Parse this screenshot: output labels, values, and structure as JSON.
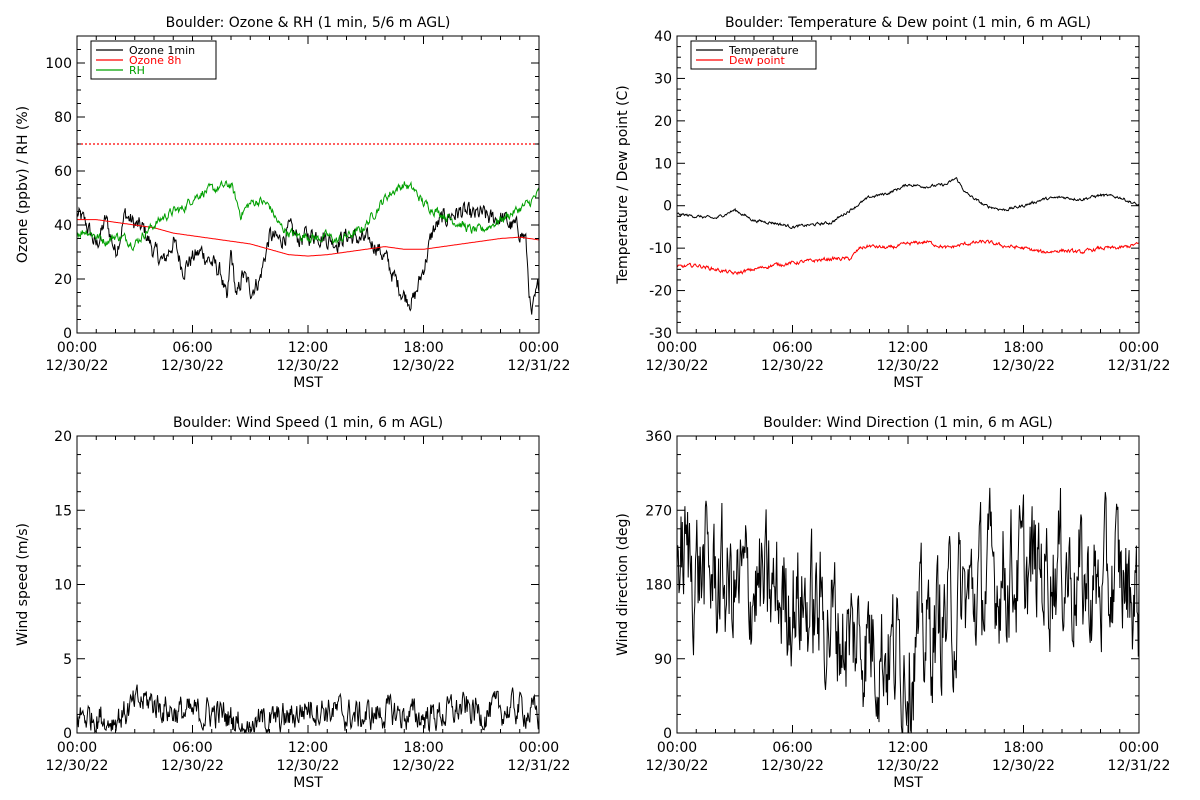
{
  "chart_data": [
    {
      "type": "line",
      "title": "Boulder: Ozone & RH (1 min, 5/6 m AGL)",
      "xlabel": "MST",
      "ylabel": "Ozone (ppbv) / RH (%)",
      "xlim": [
        0,
        24
      ],
      "ylim": [
        0,
        110
      ],
      "yticks": [
        0,
        20,
        40,
        60,
        80,
        100
      ],
      "xtick_labels": [
        {
          "time": "00:00",
          "date": "12/30/22"
        },
        {
          "time": "06:00",
          "date": "12/30/22"
        },
        {
          "time": "12:00",
          "date": "12/30/22"
        },
        {
          "time": "18:00",
          "date": "12/30/22"
        },
        {
          "time": "00:00",
          "date": "12/31/22"
        }
      ],
      "reference_line": {
        "y": 70,
        "color": "#ff0000",
        "style": "dotted"
      },
      "legend": {
        "placement": "top-left",
        "entries": [
          {
            "label": "Ozone 1min",
            "color": "#000000"
          },
          {
            "label": "Ozone 8h",
            "color": "#ff0000"
          },
          {
            "label": "RH",
            "color": "#00a000"
          }
        ]
      },
      "series": [
        {
          "name": "Ozone 1min",
          "color": "#000000",
          "x": [
            0,
            0.5,
            1,
            1.5,
            2,
            2.5,
            3,
            3.5,
            4,
            4.5,
            5,
            5.5,
            6,
            6.5,
            7,
            7.5,
            7.8,
            8,
            8.3,
            8.6,
            9,
            9.5,
            10,
            10.5,
            11,
            11.5,
            12,
            12.5,
            13,
            13.5,
            14,
            14.5,
            15,
            15.5,
            16,
            16.5,
            17,
            17.5,
            18,
            18.5,
            19,
            19.5,
            20,
            20.5,
            21,
            21.5,
            22,
            22.5,
            23,
            23.3,
            23.6,
            24
          ],
          "y": [
            44,
            40,
            32,
            42,
            30,
            44,
            40,
            38,
            30,
            26,
            34,
            24,
            28,
            30,
            26,
            22,
            10,
            30,
            12,
            22,
            16,
            20,
            36,
            34,
            38,
            35,
            36,
            37,
            35,
            34,
            36,
            35,
            34,
            33,
            28,
            20,
            14,
            12,
            24,
            38,
            42,
            44,
            45,
            43,
            44,
            42,
            43,
            40,
            38,
            35,
            5,
            18
          ],
          "noise": 4
        },
        {
          "name": "Ozone 8h",
          "color": "#ff0000",
          "x": [
            0,
            1,
            2,
            3,
            4,
            5,
            6,
            7,
            8,
            9,
            10,
            11,
            12,
            13,
            14,
            15,
            16,
            17,
            18,
            19,
            20,
            21,
            22,
            23,
            24
          ],
          "y": [
            42,
            42,
            41,
            40,
            39,
            37,
            36,
            35,
            34,
            33,
            31,
            29,
            28.5,
            29,
            30,
            31,
            32,
            31,
            31,
            32,
            33,
            34,
            35,
            35.5,
            34.5
          ],
          "noise": 0
        },
        {
          "name": "RH",
          "color": "#00a000",
          "x": [
            0,
            0.5,
            1,
            1.5,
            2,
            2.5,
            3,
            3.5,
            4,
            4.5,
            5,
            5.5,
            6,
            6.5,
            7,
            7.5,
            8,
            8.5,
            9,
            9.5,
            10,
            10.5,
            11,
            11.5,
            12,
            12.5,
            13,
            13.5,
            14,
            14.5,
            15,
            15.5,
            16,
            16.5,
            17,
            17.5,
            18,
            18.5,
            19,
            19.5,
            20,
            20.5,
            21,
            21.5,
            22,
            22.5,
            23,
            23.5,
            24
          ],
          "y": [
            37,
            38,
            36,
            34,
            36,
            35,
            33,
            37,
            40,
            43,
            45,
            46,
            50,
            52,
            53,
            54,
            55,
            44,
            48,
            49,
            47,
            40,
            37,
            36,
            36,
            35,
            36,
            34,
            36,
            37,
            40,
            45,
            50,
            53,
            55,
            53,
            48,
            46,
            44,
            42,
            40,
            38,
            38,
            40,
            42,
            44,
            46,
            48,
            52
          ],
          "noise": 2
        }
      ]
    },
    {
      "type": "line",
      "title": "Boulder: Temperature & Dew point (1 min, 6 m AGL)",
      "xlabel": "MST",
      "ylabel": "Temperature / Dew point (C)",
      "xlim": [
        0,
        24
      ],
      "ylim": [
        -30,
        40
      ],
      "yticks": [
        -30,
        -20,
        -10,
        0,
        10,
        20,
        30,
        40
      ],
      "xtick_labels": [
        {
          "time": "00:00",
          "date": "12/30/22"
        },
        {
          "time": "06:00",
          "date": "12/30/22"
        },
        {
          "time": "12:00",
          "date": "12/30/22"
        },
        {
          "time": "18:00",
          "date": "12/30/22"
        },
        {
          "time": "00:00",
          "date": "12/31/22"
        }
      ],
      "legend": {
        "placement": "top-left",
        "entries": [
          {
            "label": "Temperature",
            "color": "#000000"
          },
          {
            "label": "Dew point",
            "color": "#ff0000"
          }
        ]
      },
      "series": [
        {
          "name": "Temperature",
          "color": "#000000",
          "x": [
            0,
            1,
            2,
            3,
            4,
            5,
            6,
            7,
            8,
            9,
            10,
            11,
            12,
            13,
            14,
            14.5,
            15,
            16,
            17,
            18,
            19,
            20,
            21,
            22,
            23,
            24
          ],
          "y": [
            -2,
            -2.5,
            -3,
            -1,
            -3.5,
            -4,
            -5,
            -4.5,
            -4,
            -1,
            2,
            3,
            5,
            4.5,
            5,
            6.5,
            3,
            0,
            -1,
            0,
            1.5,
            2,
            1.5,
            2.5,
            2,
            0
          ],
          "noise": 0.4
        },
        {
          "name": "Dew point",
          "color": "#ff0000",
          "x": [
            0,
            1,
            2,
            3,
            4,
            5,
            6,
            7,
            8,
            9,
            9.5,
            10,
            11,
            12,
            13,
            14,
            15,
            16,
            17,
            18,
            19,
            20,
            21,
            22,
            23,
            24
          ],
          "y": [
            -14.5,
            -14,
            -15,
            -16,
            -15,
            -14,
            -13.5,
            -13,
            -12.5,
            -12.5,
            -10,
            -9.5,
            -10,
            -9,
            -8.5,
            -10,
            -9,
            -8.5,
            -9.5,
            -10,
            -11,
            -10.5,
            -11,
            -10,
            -10,
            -9
          ],
          "noise": 0.5
        }
      ]
    },
    {
      "type": "line",
      "title": "Boulder: Wind Speed (1 min, 6 m AGL)",
      "xlabel": "MST",
      "ylabel": "Wind speed (m/s)",
      "xlim": [
        0,
        24
      ],
      "ylim": [
        0,
        20
      ],
      "yticks": [
        0,
        5,
        10,
        15,
        20
      ],
      "xtick_labels": [
        {
          "time": "00:00",
          "date": "12/30/22"
        },
        {
          "time": "06:00",
          "date": "12/30/22"
        },
        {
          "time": "12:00",
          "date": "12/30/22"
        },
        {
          "time": "18:00",
          "date": "12/30/22"
        },
        {
          "time": "00:00",
          "date": "12/31/22"
        }
      ],
      "series": [
        {
          "color": "#000000",
          "x": [
            0,
            2,
            3,
            3.5,
            4,
            5,
            6,
            7,
            8,
            9,
            10,
            11,
            12,
            13,
            14,
            15,
            16,
            17,
            18,
            19,
            20,
            21,
            22,
            23,
            24
          ],
          "y": [
            1.2,
            1,
            1.8,
            2.2,
            2,
            1.5,
            1.2,
            1.4,
            1,
            0.8,
            0.7,
            1,
            1.8,
            1.6,
            1.2,
            1.1,
            1.4,
            1.2,
            1.1,
            1.3,
            1.6,
            1.4,
            1.5,
            1.7,
            1.2
          ],
          "noise": 1.2,
          "min": 0
        }
      ]
    },
    {
      "type": "line",
      "title": "Boulder: Wind Direction (1 min, 6 m AGL)",
      "xlabel": "MST",
      "ylabel": "Wind direction (deg)",
      "xlim": [
        0,
        24
      ],
      "ylim": [
        0,
        360
      ],
      "yticks": [
        0,
        90,
        180,
        270,
        360
      ],
      "xtick_labels": [
        {
          "time": "00:00",
          "date": "12/30/22"
        },
        {
          "time": "06:00",
          "date": "12/30/22"
        },
        {
          "time": "12:00",
          "date": "12/30/22"
        },
        {
          "time": "18:00",
          "date": "12/30/22"
        },
        {
          "time": "00:00",
          "date": "12/31/22"
        }
      ],
      "series": [
        {
          "color": "#000000",
          "x": [
            0,
            1,
            2,
            3,
            4,
            5,
            6,
            7,
            8,
            9,
            10,
            11,
            12,
            13,
            14,
            15,
            16,
            17,
            18,
            19,
            20,
            21,
            22,
            23,
            24
          ],
          "y": [
            220,
            200,
            190,
            170,
            180,
            160,
            170,
            150,
            140,
            110,
            120,
            100,
            90,
            120,
            140,
            160,
            180,
            200,
            190,
            200,
            210,
            180,
            170,
            190,
            160
          ],
          "noise": 90,
          "min": 0,
          "max": 360
        }
      ]
    }
  ]
}
